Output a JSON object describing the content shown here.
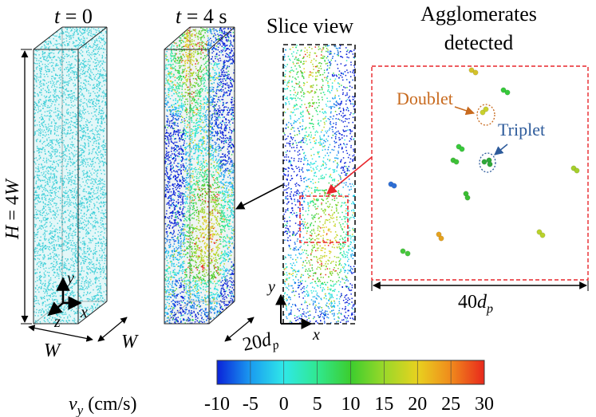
{
  "panels": {
    "t0": {
      "label": "t = 0",
      "var": "t",
      "rest": " = 0"
    },
    "t4": {
      "label": "t = 4 s",
      "var": "t",
      "rest": " = 4 s"
    },
    "slice": {
      "label": "Slice view"
    },
    "agglomerates": {
      "line1": "Agglomerates",
      "line2": "detected"
    }
  },
  "dimensions": {
    "height_label": "H = 4W",
    "height_var": "H",
    "height_eq": " = 4",
    "height_w": "W",
    "width_label": "W",
    "depth_label": "W",
    "slice_width_label": "20dp",
    "slice_width_num": "20",
    "slice_width_d": "d",
    "slice_width_sub": "p",
    "zoom_width_label": "40dp",
    "zoom_width_num": "40",
    "zoom_width_d": "d",
    "zoom_width_sub": "p"
  },
  "axes": {
    "x": "x",
    "y": "y",
    "z": "z"
  },
  "annotations": {
    "doublet": "Doublet",
    "triplet": "Triplet"
  },
  "colors": {
    "cyan": "#33ccd6",
    "zoom_box": "#e8262b",
    "doublet": "#c86a1e",
    "triplet": "#2d5b9b",
    "slice_frame": "#111111"
  },
  "colorbar": {
    "label": "vy (cm/s)",
    "label_var": "v",
    "label_sub": "y",
    "label_unit": " (cm/s)",
    "min": -10,
    "max": 30,
    "ticks": [
      "-10",
      "-5",
      "0",
      "5",
      "10",
      "15",
      "20",
      "25",
      "30"
    ],
    "stops": [
      "#0a22d9",
      "#1a9bf0",
      "#2fe8e8",
      "#30e890",
      "#3ccd2e",
      "#9ad829",
      "#e8d21f",
      "#f08a1c",
      "#e8281c"
    ]
  }
}
